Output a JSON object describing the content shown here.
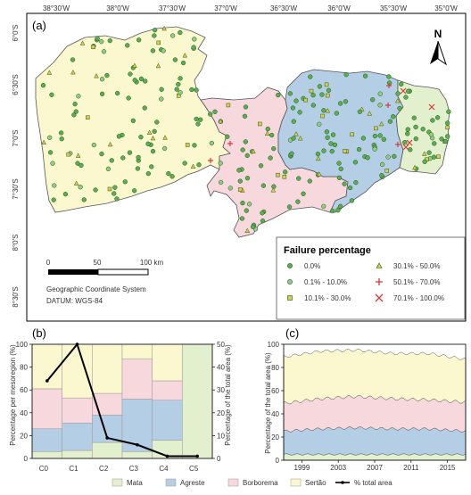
{
  "map": {
    "panel_label": "(a)",
    "north_label": "N",
    "lon_ticks": [
      "38°30'W",
      "38°0'W",
      "37°30'W",
      "37°0'W",
      "36°30'W",
      "36°0'W",
      "35°30'W",
      "35°0'W"
    ],
    "lat_ticks": [
      "6°0'S",
      "6°30'S",
      "7°0'S",
      "7°30'S",
      "8°0'S",
      "8°30'S"
    ],
    "scale": {
      "zero": "0",
      "mid": "50",
      "end": "100 km"
    },
    "crs": {
      "line1": "Geographic Coordinate System",
      "line2": "DATUM: WGS-84"
    },
    "legend": {
      "title": "Failure percentage",
      "items": [
        {
          "label": "0.0%",
          "marker": "circle-dark"
        },
        {
          "label": "0.1% - 10.0%",
          "marker": "circle-light"
        },
        {
          "label": "10.1% - 30.0%",
          "marker": "square"
        },
        {
          "label": "30.1% - 50.0%",
          "marker": "triangle"
        },
        {
          "label": "50.1% - 70.0%",
          "marker": "plus"
        },
        {
          "label": "70.1% - 100.0%",
          "marker": "cross"
        }
      ]
    },
    "colors": {
      "sertao": "#fbf8d0",
      "borborema": "#f7d8dd",
      "agreste": "#b4cfe5",
      "mata": "#e3f0cd",
      "station": "#57b24a"
    }
  },
  "panel_b": {
    "label": "(b)",
    "ylabel_left": "Percentage per mesoregion (%)",
    "ylabel_right": "Percentage of the total area (%)",
    "left_ticks": [
      "0",
      "20",
      "40",
      "60",
      "80",
      "100"
    ],
    "right_ticks": [
      "0",
      "10",
      "20",
      "30",
      "40",
      "50"
    ]
  },
  "panel_c": {
    "label": "(c)",
    "ylabel": "Percentage of the total area (%)",
    "y_ticks": [
      "0",
      "20",
      "40",
      "60",
      "80",
      "100"
    ],
    "x_ticks": [
      "1999",
      "2003",
      "2007",
      "2011",
      "2015"
    ]
  },
  "bottom_legend": [
    {
      "label": "Mata",
      "color": "#e3f0cd"
    },
    {
      "label": "Agreste",
      "color": "#b4cfe5"
    },
    {
      "label": "Borborema",
      "color": "#f7d8dd"
    },
    {
      "label": "Sertão",
      "color": "#fbf8d0"
    },
    {
      "label": "% total area",
      "color": "#000000"
    }
  ],
  "chart_data": [
    {
      "type": "bar",
      "stacked": true,
      "categories": [
        "C0",
        "C1",
        "C2",
        "C3",
        "C4",
        "C5"
      ],
      "series": [
        {
          "name": "Mata",
          "values": [
            6,
            7,
            14,
            6,
            16,
            100
          ]
        },
        {
          "name": "Agreste",
          "values": [
            20,
            24,
            24,
            46,
            35,
            0
          ]
        },
        {
          "name": "Borborema",
          "values": [
            35,
            22,
            19,
            35,
            17,
            0
          ]
        },
        {
          "name": "Sertão",
          "values": [
            39,
            47,
            43,
            13,
            32,
            0
          ]
        },
        {
          "name": "% total area",
          "axis": "right",
          "values": [
            34,
            50,
            9,
            6,
            1,
            1
          ]
        }
      ],
      "ylim": [
        0,
        100
      ],
      "ylim_right": [
        0,
        50
      ]
    },
    {
      "type": "area",
      "stacked": true,
      "x": [
        1997,
        2001,
        2005,
        2009,
        2013,
        2017
      ],
      "x_ticks": [
        "1999",
        "2003",
        "2007",
        "2011",
        "2015"
      ],
      "series": [
        {
          "name": "Mata",
          "values": [
            5,
            5,
            5,
            5,
            5,
            5
          ]
        },
        {
          "name": "Agreste",
          "values": [
            20,
            22,
            23,
            22,
            22,
            20
          ]
        },
        {
          "name": "Borborema",
          "values": [
            24,
            26,
            27,
            26,
            25,
            25
          ]
        },
        {
          "name": "Sertão",
          "values": [
            40,
            41,
            40,
            39,
            40,
            37
          ]
        }
      ],
      "ylim": [
        0,
        100
      ]
    }
  ]
}
